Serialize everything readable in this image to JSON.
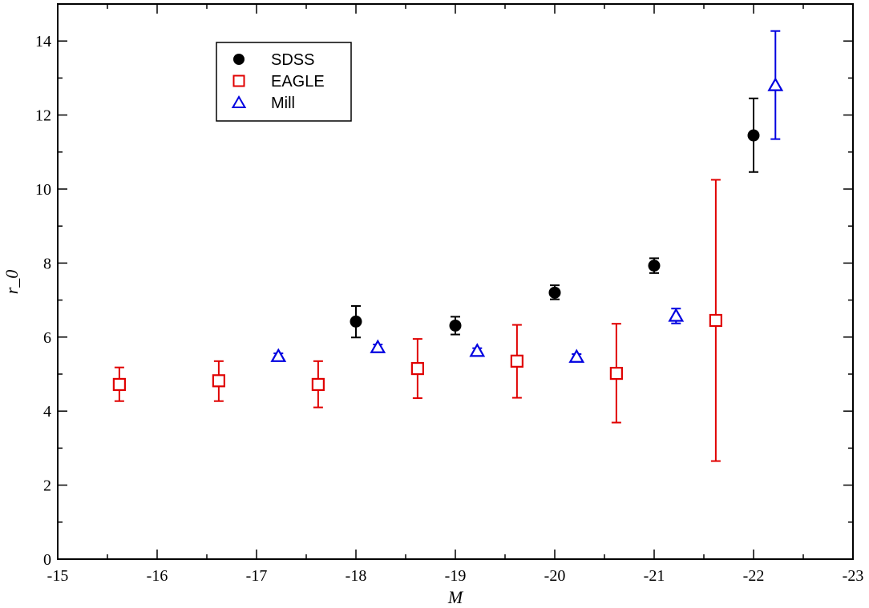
{
  "chart_data": {
    "type": "scatter",
    "title": "",
    "xlabel": "M",
    "ylabel": "r_0",
    "xlim": [
      -15,
      -23
    ],
    "ylim": [
      0,
      15
    ],
    "x_ticks": [
      -15,
      -16,
      -17,
      -18,
      -19,
      -20,
      -21,
      -22,
      -23
    ],
    "y_ticks": [
      0,
      2,
      4,
      6,
      8,
      10,
      12,
      14
    ],
    "x_tick_labels": [
      "-15",
      "-16",
      "-17",
      "-18",
      "-19",
      "-20",
      "-21",
      "-22",
      "-23"
    ],
    "y_tick_labels": [
      "0",
      "2",
      "4",
      "6",
      "8",
      "10",
      "12",
      "14"
    ],
    "grid": false,
    "legend_position": "top-left",
    "series": [
      {
        "name": "SDSS",
        "marker": "filled-circle",
        "color": "#000000",
        "points": [
          {
            "x": -18.0,
            "y": 6.42,
            "err_low": 0.43,
            "err_high": 0.42
          },
          {
            "x": -19.0,
            "y": 6.31,
            "err_low": 0.24,
            "err_high": 0.24
          },
          {
            "x": -20.0,
            "y": 7.2,
            "err_low": 0.18,
            "err_high": 0.2
          },
          {
            "x": -21.0,
            "y": 7.93,
            "err_low": 0.2,
            "err_high": 0.2
          },
          {
            "x": -22.0,
            "y": 11.45,
            "err_low": 0.99,
            "err_high": 1.0
          }
        ]
      },
      {
        "name": "EAGLE",
        "marker": "open-square",
        "color": "#e00000",
        "points": [
          {
            "x": -15.62,
            "y": 4.72,
            "err_low": 0.45,
            "err_high": 0.46
          },
          {
            "x": -16.62,
            "y": 4.82,
            "err_low": 0.55,
            "err_high": 0.53
          },
          {
            "x": -17.62,
            "y": 4.72,
            "err_low": 0.62,
            "err_high": 0.63
          },
          {
            "x": -18.62,
            "y": 5.15,
            "err_low": 0.8,
            "err_high": 0.8
          },
          {
            "x": -19.62,
            "y": 5.35,
            "err_low": 0.99,
            "err_high": 0.98
          },
          {
            "x": -20.62,
            "y": 5.02,
            "err_low": 1.33,
            "err_high": 1.34
          },
          {
            "x": -21.62,
            "y": 6.45,
            "err_low": 3.8,
            "err_high": 3.8
          }
        ]
      },
      {
        "name": "Mill",
        "marker": "open-triangle",
        "color": "#0000e0",
        "points": [
          {
            "x": -17.22,
            "y": 5.48,
            "err_low": 0.08,
            "err_high": 0.08
          },
          {
            "x": -18.22,
            "y": 5.72,
            "err_low": 0.08,
            "err_high": 0.08
          },
          {
            "x": -19.22,
            "y": 5.62,
            "err_low": 0.08,
            "err_high": 0.08
          },
          {
            "x": -20.22,
            "y": 5.46,
            "err_low": 0.08,
            "err_high": 0.08
          },
          {
            "x": -21.22,
            "y": 6.57,
            "err_low": 0.2,
            "err_high": 0.2
          },
          {
            "x": -22.22,
            "y": 12.8,
            "err_low": 1.45,
            "err_high": 1.47
          }
        ]
      }
    ]
  }
}
